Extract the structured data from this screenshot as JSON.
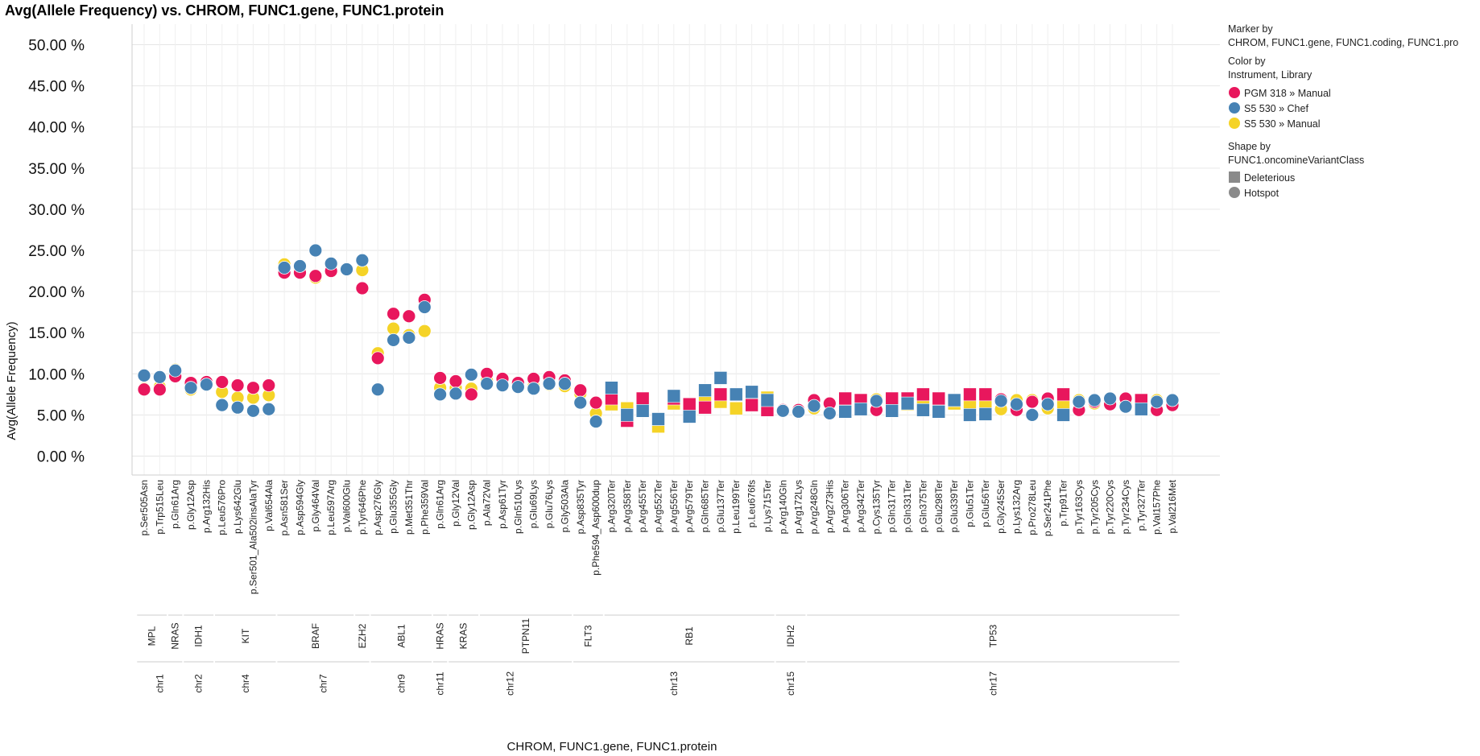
{
  "chart_data": {
    "type": "scatter",
    "title": "Avg(Allele Frequency) vs. CHROM, FUNC1.gene, FUNC1.protein",
    "xlabel": "CHROM, FUNC1.gene, FUNC1.protein",
    "ylabel": "Avg(Allele Frequency)",
    "ylim": [
      -2.3,
      52.5
    ],
    "yticks": [
      0,
      5,
      10,
      15,
      20,
      25,
      30,
      35,
      40,
      45,
      50
    ],
    "ytick_labels": [
      "0.00 %",
      "5.00 %",
      "10.00 %",
      "15.00 %",
      "20.00 %",
      "25.00 %",
      "30.00 %",
      "35.00 %",
      "40.00 %",
      "45.00 %",
      "50.00 %"
    ],
    "grid": true,
    "legend": {
      "marker_by_title": "Marker by",
      "marker_by_value": "CHROM,  FUNC1.gene,  FUNC1.coding,  FUNC1.pro",
      "color_by_title": "Color by",
      "color_by_value": "Instrument, Library",
      "shape_by_title": "Shape by",
      "shape_by_value": "FUNC1.oncomineVariantClass",
      "series": [
        {
          "name": "PGM 318 » Manual",
          "color": "#e8175d"
        },
        {
          "name": "S5 530 » Chef",
          "color": "#4682b4"
        },
        {
          "name": "S5 530 » Manual",
          "color": "#f5d327"
        }
      ],
      "shapes": [
        {
          "name": "Deleterious",
          "shape": "square"
        },
        {
          "name": "Hotspot",
          "shape": "circle"
        }
      ]
    },
    "categories": [
      "p.Ser505Asn",
      "p.Trp515Leu",
      "p.Gln61Arg",
      "p.Gly12Asp",
      "p.Arg132His",
      "p.Leu576Pro",
      "p.Lys642Glu",
      "p.Ser501_Ala502insAlaTyr",
      "p.Val654Ala",
      "p.Asn581Ser",
      "p.Asp594Gly",
      "p.Gly464Val",
      "p.Leu597Arg",
      "p.Val600Glu",
      "p.Tyr646Phe",
      "p.Asp276Gly",
      "p.Glu355Gly",
      "p.Met351Thr",
      "p.Phe359Val",
      "p.Gln61Arg",
      "p.Gly12Val",
      "p.Gly12Asp",
      "p.Ala72Val",
      "p.Asp61Tyr",
      "p.Gln510Lys",
      "p.Glu69Lys",
      "p.Glu76Lys",
      "p.Gly503Ala",
      "p.Asp835Tyr",
      "p.Phe594_Asp600dup",
      "p.Arg320Ter",
      "p.Arg358Ter",
      "p.Arg455Ter",
      "p.Arg552Ter",
      "p.Arg556Ter",
      "p.Arg579Ter",
      "p.Gln685Ter",
      "p.Glu137Ter",
      "p.Leu199Ter",
      "p.Leu676fs",
      "p.Lys715Ter",
      "p.Arg140Gln",
      "p.Arg172Lys",
      "p.Arg248Gln",
      "p.Arg273His",
      "p.Arg306Ter",
      "p.Arg342Ter",
      "p.Cys135Tyr",
      "p.Gln317Ter",
      "p.Gln331Ter",
      "p.Gln375Ter",
      "p.Glu298Ter",
      "p.Glu339Ter",
      "p.Glu51Ter",
      "p.Glu56Ter",
      "p.Gly245Ser",
      "p.Lys132Arg",
      "p.Pro278Leu",
      "p.Ser241Phe",
      "p.Trp91Ter",
      "p.Tyr163Cys",
      "p.Tyr205Cys",
      "p.Tyr220Cys",
      "p.Tyr234Cys",
      "p.Tyr327Ter",
      "p.Val157Phe",
      "p.Val216Met"
    ],
    "shapes": [
      "c",
      "c",
      "c",
      "c",
      "c",
      "c",
      "c",
      "c",
      "c",
      "c",
      "c",
      "c",
      "c",
      "c",
      "c",
      "c",
      "c",
      "c",
      "c",
      "c",
      "c",
      "c",
      "c",
      "c",
      "c",
      "c",
      "c",
      "c",
      "c",
      "c",
      "s",
      "s",
      "s",
      "s",
      "s",
      "s",
      "s",
      "s",
      "s",
      "s",
      "s",
      "c",
      "c",
      "c",
      "c",
      "s",
      "s",
      "c",
      "s",
      "s",
      "s",
      "s",
      "s",
      "s",
      "s",
      "c",
      "c",
      "c",
      "c",
      "s",
      "c",
      "c",
      "c",
      "c",
      "s",
      "c",
      "c"
    ],
    "genes": [
      {
        "name": "MPL",
        "start": 0,
        "end": 1
      },
      {
        "name": "NRAS",
        "start": 2,
        "end": 2
      },
      {
        "name": "IDH1",
        "start": 3,
        "end": 4
      },
      {
        "name": "KIT",
        "start": 5,
        "end": 8
      },
      {
        "name": "BRAF",
        "start": 9,
        "end": 13
      },
      {
        "name": "EZH2",
        "start": 14,
        "end": 14
      },
      {
        "name": "ABL1",
        "start": 15,
        "end": 18
      },
      {
        "name": "HRAS",
        "start": 19,
        "end": 19
      },
      {
        "name": "KRAS",
        "start": 20,
        "end": 21
      },
      {
        "name": "PTPN11",
        "start": 22,
        "end": 27
      },
      {
        "name": "FLT3",
        "start": 28,
        "end": 29
      },
      {
        "name": "RB1",
        "start": 30,
        "end": 40
      },
      {
        "name": "IDH2",
        "start": 41,
        "end": 42
      },
      {
        "name": "TP53",
        "start": 43,
        "end": 66
      }
    ],
    "chroms": [
      {
        "name": "chr1",
        "start": 0,
        "end": 2
      },
      {
        "name": "chr2",
        "start": 3,
        "end": 4
      },
      {
        "name": "chr4",
        "start": 5,
        "end": 8
      },
      {
        "name": "chr7",
        "start": 9,
        "end": 14
      },
      {
        "name": "chr9",
        "start": 15,
        "end": 18
      },
      {
        "name": "chr11",
        "start": 19,
        "end": 19
      },
      {
        "name": "chr12",
        "start": 20,
        "end": 27
      },
      {
        "name": "chr13",
        "start": 28,
        "end": 40
      },
      {
        "name": "chr15",
        "start": 41,
        "end": 42
      },
      {
        "name": "chr17",
        "start": 43,
        "end": 66
      }
    ],
    "series": [
      {
        "name": "PGM 318 » Manual",
        "color": "#e8175d",
        "values": [
          8.1,
          8.1,
          9.7,
          8.9,
          9.0,
          9.0,
          8.6,
          8.3,
          8.6,
          22.3,
          22.3,
          21.9,
          22.5,
          22.7,
          20.4,
          11.9,
          17.3,
          17.0,
          19.0,
          9.5,
          9.1,
          7.5,
          10.0,
          9.4,
          8.9,
          9.4,
          9.6,
          9.2,
          8.0,
          6.5,
          7.0,
          4.3,
          7.0,
          4.5,
          7.0,
          6.3,
          5.9,
          7.5,
          7.5,
          6.2,
          5.6,
          5.6,
          5.6,
          6.8,
          6.4,
          7.0,
          6.8,
          5.6,
          7.0,
          7.0,
          7.5,
          7.0,
          6.8,
          7.5,
          7.5,
          6.9,
          5.6,
          6.6,
          7.0,
          7.5,
          5.6,
          6.6,
          6.3,
          7.0,
          6.8,
          5.6,
          6.2
        ]
      },
      {
        "name": "S5 530 » Chef",
        "color": "#4682b4",
        "values": [
          9.8,
          9.6,
          10.4,
          8.3,
          8.7,
          6.2,
          5.9,
          5.5,
          5.7,
          22.9,
          23.1,
          25.0,
          23.4,
          22.7,
          23.8,
          8.1,
          14.1,
          14.4,
          18.1,
          7.5,
          7.6,
          9.9,
          8.8,
          8.6,
          8.4,
          8.2,
          8.8,
          8.8,
          6.5,
          4.2,
          8.3,
          5.0,
          5.5,
          4.5,
          7.3,
          4.8,
          8.0,
          9.5,
          7.5,
          7.8,
          6.8,
          5.5,
          5.4,
          6.1,
          5.2,
          5.4,
          5.7,
          6.7,
          5.5,
          6.4,
          5.6,
          5.4,
          6.8,
          5.0,
          5.1,
          6.7,
          6.3,
          5.0,
          6.3,
          5.0,
          6.6,
          6.8,
          7.0,
          6.0,
          5.7,
          6.6,
          6.8
        ]
      },
      {
        "name": "S5 530 » Manual",
        "color": "#f5d327",
        "values": [
          8.2,
          8.4,
          10.5,
          8.1,
          9.0,
          7.8,
          7.1,
          7.1,
          7.4,
          23.3,
          22.7,
          21.7,
          22.5,
          22.7,
          22.6,
          12.5,
          15.5,
          14.7,
          15.2,
          8.3,
          8.3,
          8.2,
          9.2,
          8.6,
          8.8,
          8.5,
          8.7,
          8.5,
          7.6,
          5.2,
          6.3,
          5.8,
          6.2,
          3.6,
          6.4,
          6.3,
          6.7,
          6.6,
          5.8,
          6.5,
          7.1,
          5.6,
          5.4,
          5.8,
          6.4,
          6.5,
          6.5,
          6.9,
          6.3,
          6.3,
          6.4,
          6.4,
          6.4,
          6.2,
          6.2,
          5.7,
          6.8,
          6.8,
          5.8,
          6.4,
          6.8,
          6.4,
          6.5,
          6.3,
          6.1,
          6.8,
          6.5
        ]
      }
    ]
  }
}
